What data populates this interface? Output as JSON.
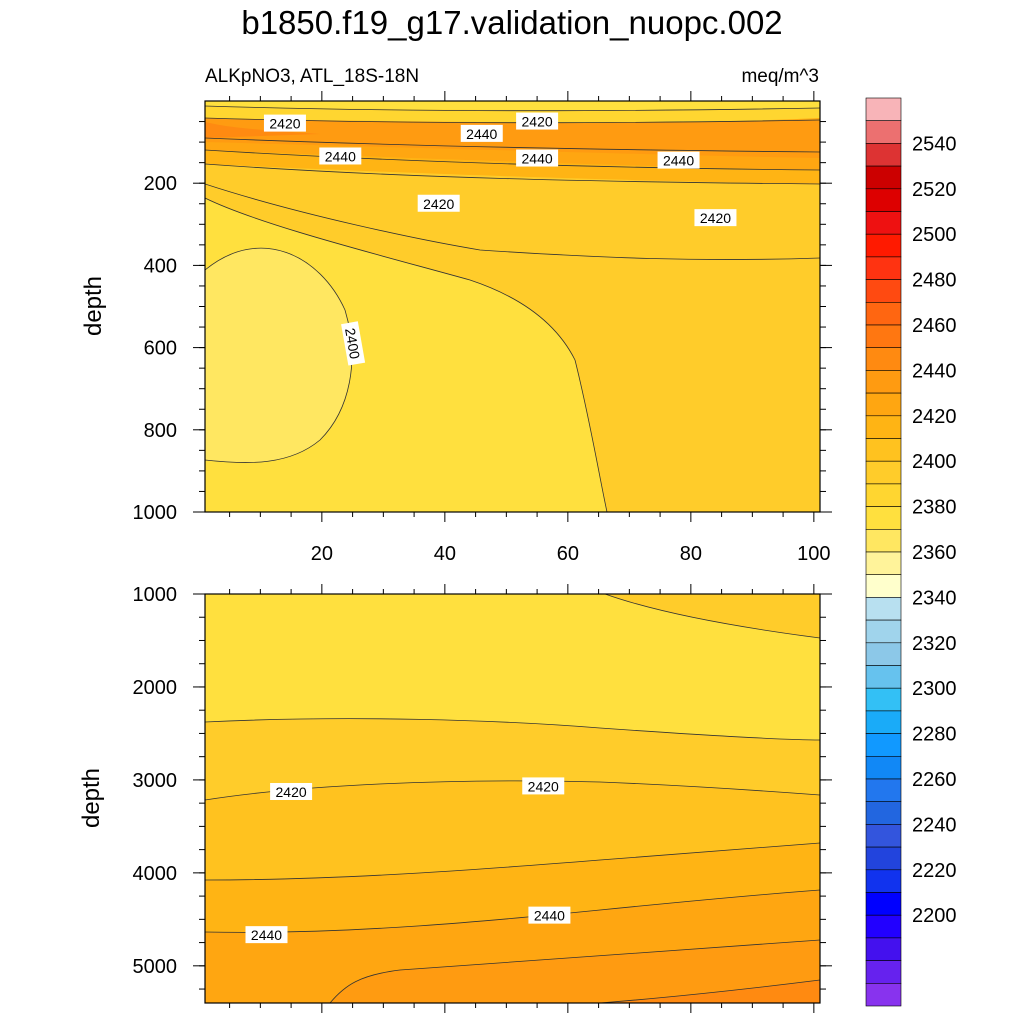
{
  "chart_data": {
    "type": "contour",
    "title": "b1850.f19_g17.validation_nuopc.002",
    "subtitle_left": "ALKpNO3, ATL_18S-18N",
    "subtitle_right": "meq/m^3",
    "x_ticks": [
      "20",
      "40",
      "60",
      "80",
      "100"
    ],
    "xlim": [
      1,
      101
    ],
    "panels": [
      {
        "name": "upper",
        "ylabel": "depth",
        "ylim": [
          0,
          1000
        ],
        "y_ticks": [
          "200",
          "400",
          "600",
          "800",
          "1000"
        ],
        "contour_labels": [
          {
            "text": "2420",
            "x": 14,
            "y": 55
          },
          {
            "text": "2440",
            "x": 46,
            "y": 80
          },
          {
            "text": "2420",
            "x": 55,
            "y": 50
          },
          {
            "text": "2440",
            "x": 23,
            "y": 135
          },
          {
            "text": "2440",
            "x": 55,
            "y": 140
          },
          {
            "text": "2440",
            "x": 78,
            "y": 145
          },
          {
            "text": "2420",
            "x": 39,
            "y": 250
          },
          {
            "text": "2420",
            "x": 84,
            "y": 285
          },
          {
            "text": "2400",
            "x": 25,
            "y": 590
          }
        ]
      },
      {
        "name": "lower",
        "ylabel": "depth",
        "ylim": [
          1000,
          5400
        ],
        "y_ticks": [
          "1000",
          "2000",
          "3000",
          "4000",
          "5000"
        ],
        "contour_labels": [
          {
            "text": "2420",
            "x": 15,
            "y": 3130
          },
          {
            "text": "2420",
            "x": 56,
            "y": 3070
          },
          {
            "text": "2440",
            "x": 11,
            "y": 4670
          },
          {
            "text": "2440",
            "x": 57,
            "y": 4460
          }
        ]
      }
    ],
    "colorbar": {
      "labels": [
        "2540",
        "2520",
        "2500",
        "2480",
        "2460",
        "2440",
        "2420",
        "2400",
        "2380",
        "2360",
        "2340",
        "2320",
        "2300",
        "2280",
        "2260",
        "2240",
        "2220",
        "2200"
      ],
      "colors": [
        "#f8b4b8",
        "#ec7070",
        "#dd3333",
        "#cc0000",
        "#dd0000",
        "#ee1111",
        "#ff1a00",
        "#ff3311",
        "#ff4a11",
        "#ff6611",
        "#ff7711",
        "#ff8a11",
        "#ff9b11",
        "#ffa611",
        "#ffb414",
        "#ffc21f",
        "#ffcc2a",
        "#ffd630",
        "#ffe03e",
        "#ffe761",
        "#fff39a",
        "#ffffcc",
        "#b8e0f0",
        "#a0d4ec",
        "#8cc8e8",
        "#66c2ee",
        "#33c0f5",
        "#1aabf8",
        "#1199ff",
        "#1188f6",
        "#2277ee",
        "#2266e0",
        "#3355dd",
        "#2244dd",
        "#1133ee",
        "#0000ff",
        "#2200ff",
        "#4411ee",
        "#6622ee",
        "#8833ee"
      ]
    }
  }
}
